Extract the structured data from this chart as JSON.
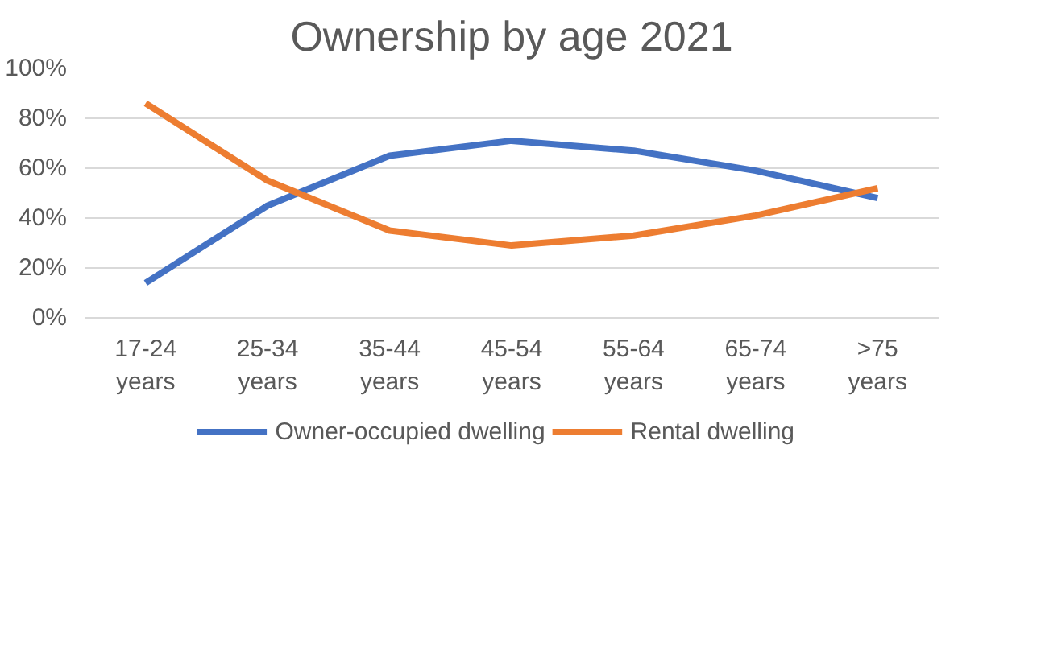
{
  "chart_data": {
    "type": "line",
    "title": "Ownership by age 2021",
    "categories": [
      "17-24 years",
      "25-34 years",
      "35-44 years",
      "45-54 years",
      "55-64 years",
      "65-74 years",
      ">75 years"
    ],
    "series": [
      {
        "name": "Owner-occupied dwelling",
        "color": "#4472c4",
        "values": [
          14,
          45,
          65,
          71,
          67,
          59,
          48
        ]
      },
      {
        "name": "Rental dwelling",
        "color": "#ed7d31",
        "values": [
          86,
          55,
          35,
          29,
          33,
          41,
          52
        ]
      }
    ],
    "ylim": [
      0,
      100
    ],
    "yticks": [
      {
        "value": 0,
        "label": "0%"
      },
      {
        "value": 20,
        "label": "20%"
      },
      {
        "value": 40,
        "label": "40%"
      },
      {
        "value": 60,
        "label": "60%"
      },
      {
        "value": 80,
        "label": "80%"
      },
      {
        "value": 100,
        "label": "100%"
      }
    ],
    "grid": "y",
    "legend": "bottom",
    "marker": "none",
    "line_style": "solid"
  }
}
